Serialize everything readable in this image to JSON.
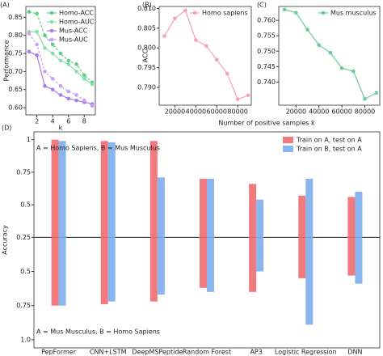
{
  "chart_data": [
    {
      "type": "line",
      "title": "(A)",
      "ylabel": "Performance",
      "xlabel": "k",
      "x": [
        1,
        2,
        3,
        4,
        5,
        6,
        7,
        8,
        9
      ],
      "xlim": [
        0.6,
        9.4
      ],
      "xticks": [
        2,
        4,
        6,
        8
      ],
      "ylim": [
        0.58,
        0.88
      ],
      "yticks": [
        {
          "value": 0.6,
          "label": "0.60"
        },
        {
          "value": 0.65,
          "label": "0.65"
        },
        {
          "value": 0.7,
          "label": "0.70"
        },
        {
          "value": 0.75,
          "label": "0.75"
        },
        {
          "value": 0.8,
          "label": "0.80"
        },
        {
          "value": 0.85,
          "label": "0.85"
        }
      ],
      "legend": "upper right",
      "series": [
        {
          "name": "Homo-ACC",
          "color": "#5ccf86",
          "linestyle": "dashed",
          "values": [
            0.865,
            0.86,
            0.8,
            0.775,
            0.75,
            0.73,
            0.72,
            0.69,
            0.67
          ]
        },
        {
          "name": "Homo-AUC",
          "color": "#86e0a6",
          "linestyle": "solid",
          "values": [
            0.81,
            0.81,
            0.765,
            0.75,
            0.73,
            0.72,
            0.7,
            0.68,
            0.665
          ]
        },
        {
          "name": "Mus-ACC",
          "color": "#a97ee6",
          "linestyle": "solid",
          "values": [
            0.755,
            0.745,
            0.66,
            0.65,
            0.635,
            0.625,
            0.62,
            0.615,
            0.61
          ]
        },
        {
          "name": "Mus-AUC",
          "color": "#cba0f5",
          "linestyle": "dashed",
          "values": [
            0.805,
            0.775,
            0.7,
            0.68,
            0.66,
            0.645,
            0.635,
            0.62,
            0.605
          ]
        }
      ]
    },
    {
      "type": "line",
      "title": "(B)",
      "ylabel": "ACC",
      "xlabel": "Number of positive samples k",
      "x": [
        10000,
        20000,
        30000,
        40000,
        50000,
        60000,
        70000,
        80000,
        90000
      ],
      "xlim": [
        5000,
        93000
      ],
      "xticks": [
        20000,
        40000,
        60000,
        80000
      ],
      "ylim": [
        0.7855,
        0.8105
      ],
      "yticks": [
        {
          "value": 0.79,
          "label": "0.790"
        },
        {
          "value": 0.795,
          "label": "0.795"
        },
        {
          "value": 0.8,
          "label": "0.800"
        },
        {
          "value": 0.805,
          "label": "0.805"
        },
        {
          "value": 0.81,
          "label": "0.810"
        }
      ],
      "legend": "upper right",
      "series": [
        {
          "name": "Homo sapiens",
          "color": "#f4a3b3",
          "linestyle": "solid",
          "values": [
            0.803,
            0.8075,
            0.8095,
            0.802,
            0.8005,
            0.797,
            0.7935,
            0.787,
            0.788
          ]
        }
      ]
    },
    {
      "type": "line",
      "title": "(C)",
      "x": [
        10000,
        20000,
        30000,
        40000,
        50000,
        60000,
        70000,
        80000,
        90000
      ],
      "xlim": [
        5000,
        93000
      ],
      "xticks": [
        20000,
        40000,
        60000,
        80000
      ],
      "ylim": [
        0.7325,
        0.7645
      ],
      "yticks": [
        {
          "value": 0.74,
          "label": "0.740"
        },
        {
          "value": 0.745,
          "label": "0.745"
        },
        {
          "value": 0.75,
          "label": "0.750"
        },
        {
          "value": 0.755,
          "label": "0.755"
        },
        {
          "value": 0.76,
          "label": "0.760"
        }
      ],
      "legend": "upper right",
      "series": [
        {
          "name": "Mus musculus",
          "color": "#6ccc99",
          "linestyle": "solid",
          "values": [
            0.7635,
            0.7625,
            0.757,
            0.752,
            0.7495,
            0.7445,
            0.7435,
            0.7345,
            0.7365
          ]
        }
      ]
    },
    {
      "type": "diverging_bar",
      "title": "(D)",
      "ylabel": "Accuracy",
      "upper_label": "A = Homo Sapiens, B = Mus Musculus",
      "lower_label": "A = Mus Musculus, B = Homo Sapiens",
      "categories": [
        "PepFormer",
        "CNN+LSTM",
        "DeepMSPeptide",
        "Random Forest",
        "AP3",
        "Logistic Regression",
        "DNN"
      ],
      "ylim": [
        0.25,
        1.06
      ],
      "yticks": [
        1,
        0.75,
        0.5,
        0.25
      ],
      "lower_yticks": [
        0.5,
        0.75,
        {
          "value": 1,
          "label": "1.0"
        }
      ],
      "legend": "upper right",
      "series": [
        {
          "name": "Train on A, test on A",
          "color": "#f07a7e",
          "values": [
            1.0,
            0.99,
            0.99,
            0.7,
            0.66,
            0.57,
            0.56
          ],
          "lower_values": [
            0.75,
            0.74,
            0.72,
            0.62,
            0.65,
            0.55,
            0.53
          ]
        },
        {
          "name": "Train on B, test on A",
          "color": "#8ab6f0",
          "values": [
            0.99,
            0.98,
            0.71,
            0.7,
            0.54,
            0.7,
            0.6
          ],
          "lower_values": [
            0.75,
            0.72,
            0.67,
            0.65,
            0.5,
            0.89,
            0.59
          ]
        }
      ]
    }
  ]
}
